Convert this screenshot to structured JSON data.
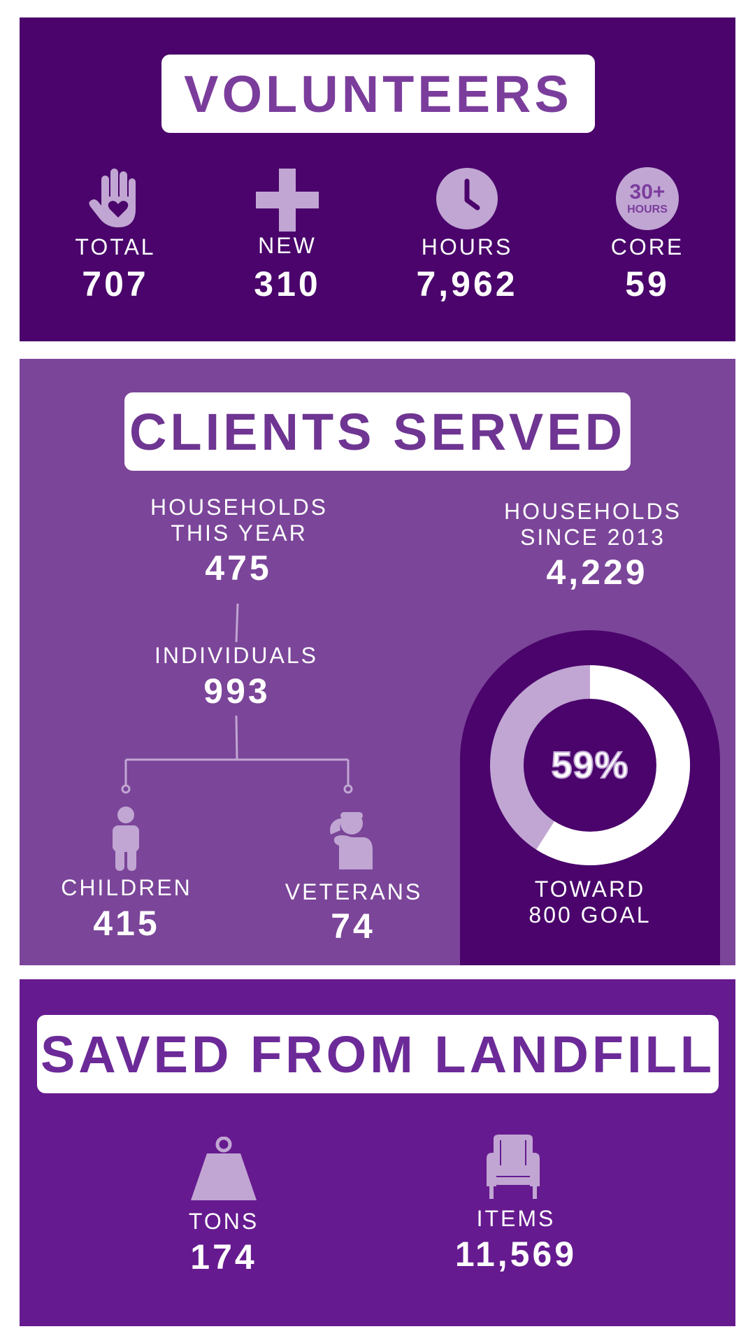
{
  "volunteers": {
    "title": "VOLUNTEERS",
    "stats": [
      {
        "icon": "hand-heart-icon",
        "label": "TOTAL",
        "value": "707"
      },
      {
        "icon": "plus-icon",
        "label": "NEW",
        "value": "310"
      },
      {
        "icon": "clock-icon",
        "label": "HOURS",
        "value": "7,962"
      },
      {
        "icon": "thirty-plus-hours-icon",
        "badge_top": "30+",
        "badge_bottom": "HOURS",
        "label": "CORE",
        "value": "59"
      }
    ]
  },
  "clients": {
    "title": "CLIENTS SERVED",
    "households_year": {
      "label_line1": "HOUSEHOLDS",
      "label_line2": "THIS YEAR",
      "value": "475"
    },
    "households_since": {
      "label_line1": "HOUSEHOLDS",
      "label_line2": "SINCE 2013",
      "value": "4,229"
    },
    "individuals": {
      "label": "INDIVIDUALS",
      "value": "993"
    },
    "children": {
      "icon": "child-icon",
      "label": "CHILDREN",
      "value": "415"
    },
    "veterans": {
      "icon": "saluting-veteran-icon",
      "label": "VETERANS",
      "value": "74"
    },
    "goal": {
      "percent_label": "59%",
      "percent": 59,
      "caption_line1": "TOWARD",
      "caption_line2": "800 GOAL"
    }
  },
  "landfill": {
    "title": "SAVED FROM LANDFILL",
    "stats": [
      {
        "icon": "weight-icon",
        "label": "TONS",
        "value": "174"
      },
      {
        "icon": "armchair-icon",
        "label": "ITEMS",
        "value": "11,569"
      }
    ]
  },
  "colors": {
    "dark_purple": "#4a046b",
    "mid_purple": "#7b4599",
    "landfill_purple": "#661a8f",
    "lavender": "#c1a6d3",
    "white": "#ffffff"
  }
}
